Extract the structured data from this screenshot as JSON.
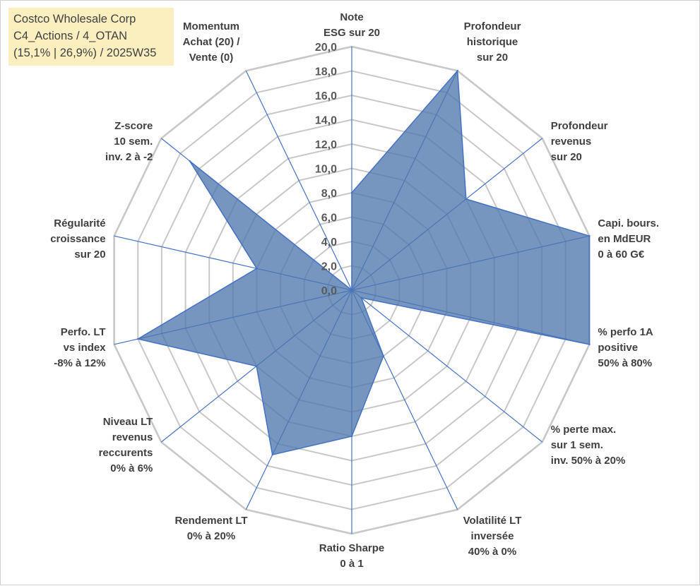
{
  "title_box": {
    "line1": "Costco Wholesale Corp",
    "line2": "C4_Actions / 4_OTAN",
    "line3": "(15,1% | 26,9%) / 2025W35"
  },
  "colors": {
    "grid": "#c8c8c8",
    "spoke": "#4472c4",
    "fill": "#4f77ad",
    "fill_opacity": 0.78,
    "title_box_bg": "#fcefbf"
  },
  "chart_data": {
    "type": "radar",
    "title": "",
    "rmin": 0,
    "rmax": 20,
    "tick_step": 2,
    "tick_labels": [
      "0,0",
      "2,0",
      "4,0",
      "6,0",
      "8,0",
      "10,0",
      "12,0",
      "14,0",
      "16,0",
      "18,0",
      "20,0"
    ],
    "grid": true,
    "grid_shape": "polygon",
    "axes": [
      {
        "label": [
          "Note",
          "ESG sur 20"
        ],
        "value": 8.0
      },
      {
        "label": [
          "Profondeur",
          "historique",
          "sur 20"
        ],
        "value": 20.0
      },
      {
        "label": [
          "Profondeur",
          "revenus",
          "sur 20"
        ],
        "value": 12.0
      },
      {
        "label": [
          "Capi. bours.",
          "en MdEUR",
          "0 à 60 G€"
        ],
        "value": 20.0
      },
      {
        "label": [
          "% perfo 1A",
          "positive",
          "50% à 80%"
        ],
        "value": 20.0
      },
      {
        "label": [
          "% perte max.",
          "sur 1 sem.",
          "inv. 50% à 20%"
        ],
        "value": 1.0
      },
      {
        "label": [
          "Volatilité LT",
          "inversée",
          "40% à 0%"
        ],
        "value": 6.0
      },
      {
        "label": [
          "Ratio Sharpe",
          "0 à 1"
        ],
        "value": 12.0
      },
      {
        "label": [
          "Rendement LT",
          "0% à 20%"
        ],
        "value": 15.0
      },
      {
        "label": [
          "Niveau LT",
          "revenus",
          "reccurents",
          "0% à 6%"
        ],
        "value": 10.0
      },
      {
        "label": [
          "Perfo. LT",
          "vs index",
          "-8% à 12%"
        ],
        "value": 18.0
      },
      {
        "label": [
          "Régularité",
          "croissance",
          "sur 20"
        ],
        "value": 8.0
      },
      {
        "label": [
          "Z-score",
          "10 sem.",
          "inv. 2 à -2"
        ],
        "value": 17.0
      },
      {
        "label": [
          "Momentum",
          "Achat (20) /",
          "Vente (0)"
        ],
        "value": 0.0
      }
    ]
  }
}
